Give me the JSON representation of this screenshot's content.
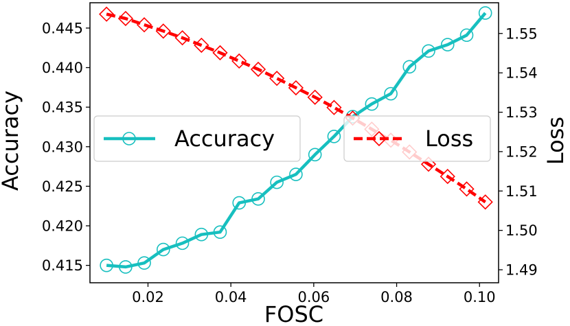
{
  "chart_data": {
    "type": "line",
    "xlabel": "FOSC",
    "ylabel_left": "Accuracy",
    "ylabel_right": "Loss",
    "x_ticks": [
      "0.02",
      "0.04",
      "0.06",
      "0.08",
      "0.10"
    ],
    "y_left_ticks": [
      "0.415",
      "0.420",
      "0.425",
      "0.430",
      "0.435",
      "0.440",
      "0.445"
    ],
    "y_right_ticks": [
      "1.49",
      "1.50",
      "1.51",
      "1.52",
      "1.53",
      "1.54",
      "1.55"
    ],
    "xlim": [
      0.006,
      0.1046
    ],
    "ylim_left": [
      0.4128,
      0.4482
    ],
    "ylim_right": [
      1.4867,
      1.5578
    ],
    "grid": false,
    "legend": "center",
    "x": [
      0.01,
      0.0146,
      0.0191,
      0.0237,
      0.0283,
      0.0329,
      0.0374,
      0.042,
      0.0466,
      0.0511,
      0.0557,
      0.0603,
      0.0649,
      0.0694,
      0.074,
      0.0786,
      0.0831,
      0.0877,
      0.0923,
      0.0969,
      0.1014
    ],
    "series": [
      {
        "name": "Accuracy",
        "axis": "left",
        "color": "#17bfbf",
        "style": "solid",
        "marker": "circle",
        "values": [
          0.415,
          0.4148,
          0.4153,
          0.417,
          0.4178,
          0.4189,
          0.4192,
          0.4229,
          0.4234,
          0.4255,
          0.4265,
          0.429,
          0.4313,
          0.4338,
          0.4354,
          0.4367,
          0.4401,
          0.4421,
          0.4429,
          0.4441,
          0.4469
        ]
      },
      {
        "name": "Loss",
        "axis": "right",
        "color": "#ff0000",
        "style": "dashed",
        "marker": "diamond",
        "values": [
          1.5549,
          1.5538,
          1.5522,
          1.5506,
          1.5489,
          1.547,
          1.5451,
          1.543,
          1.5409,
          1.5386,
          1.5362,
          1.5338,
          1.5312,
          1.5285,
          1.5257,
          1.5229,
          1.5199,
          1.5168,
          1.5137,
          1.5105,
          1.5072
        ]
      }
    ]
  }
}
